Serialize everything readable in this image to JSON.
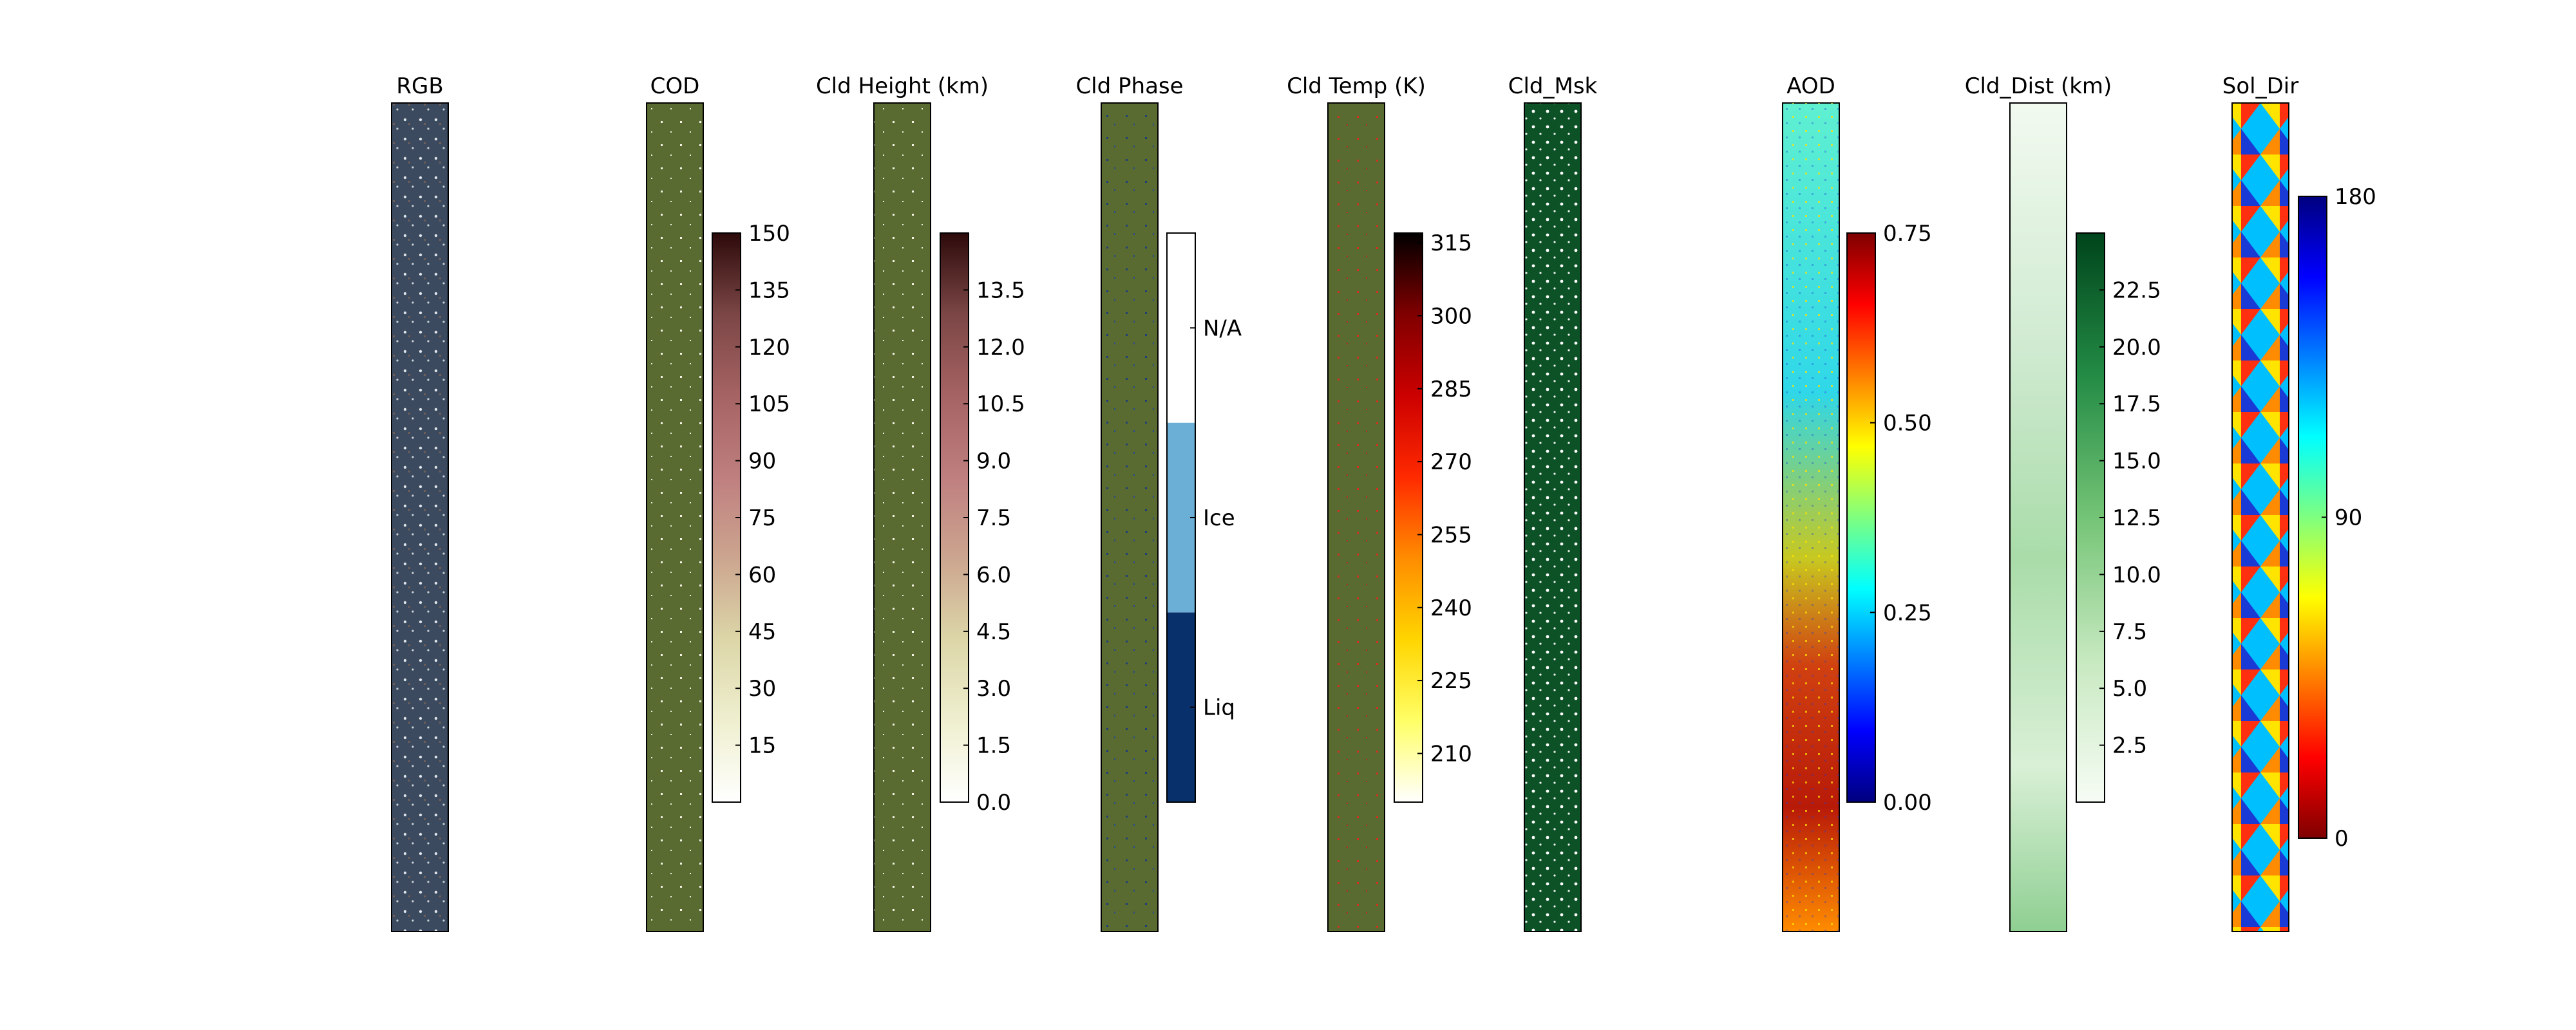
{
  "chart_data": [
    {
      "type": "heatmap",
      "title": "RGB",
      "colorbar": null
    },
    {
      "type": "heatmap",
      "title": "COD",
      "colorbar": {
        "range": [
          0,
          150
        ],
        "ticks": [
          15,
          30,
          45,
          60,
          75,
          90,
          105,
          120,
          135,
          150
        ],
        "tick_labels": [
          "15",
          "30",
          "45",
          "60",
          "75",
          "90",
          "105",
          "120",
          "135",
          "150"
        ],
        "colormap": "pink_r",
        "colors": [
          "#ffffff",
          "#efefcf",
          "#dcd6a8",
          "#cca58f",
          "#bf7f7f",
          "#a66363",
          "#7c4646",
          "#2d0a0a"
        ]
      }
    },
    {
      "type": "heatmap",
      "title": "Cld Height (km)",
      "colorbar": {
        "range": [
          0,
          15
        ],
        "ticks": [
          0,
          1.5,
          3,
          4.5,
          6,
          7.5,
          9,
          10.5,
          12,
          13.5
        ],
        "tick_labels": [
          "0.0",
          "1.5",
          "3.0",
          "4.5",
          "6.0",
          "7.5",
          "9.0",
          "10.5",
          "12.0",
          "13.5"
        ],
        "colormap": "pink_r",
        "colors": [
          "#ffffff",
          "#efefcf",
          "#dcd6a8",
          "#cca58f",
          "#bf7f7f",
          "#a66363",
          "#7c4646",
          "#2d0a0a"
        ]
      }
    },
    {
      "type": "heatmap",
      "title": "Cld Phase",
      "colorbar": {
        "categories": [
          "Liq",
          "Ice",
          "N/A"
        ],
        "category_colors": [
          "#08306b",
          "#6baed6",
          "#ffffff"
        ]
      }
    },
    {
      "type": "heatmap",
      "title": "Cld Temp (K)",
      "colorbar": {
        "range": [
          200,
          317
        ],
        "ticks": [
          210,
          225,
          240,
          255,
          270,
          285,
          300,
          315
        ],
        "tick_labels": [
          "210",
          "225",
          "240",
          "255",
          "270",
          "285",
          "300",
          "315"
        ],
        "colormap": "hot_r",
        "colors": [
          "#ffffff",
          "#ffff66",
          "#ffd500",
          "#ff8c00",
          "#ff2a00",
          "#cc0000",
          "#800000",
          "#000000"
        ]
      }
    },
    {
      "type": "heatmap",
      "title": "Cld_Msk",
      "colorbar": null
    },
    {
      "type": "heatmap",
      "title": "AOD",
      "colorbar": {
        "range": [
          0,
          0.75
        ],
        "ticks": [
          0,
          0.25,
          0.5,
          0.75
        ],
        "tick_labels": [
          "0.00",
          "0.25",
          "0.50",
          "0.75"
        ],
        "colormap": "jet",
        "colors": [
          "#00007f",
          "#0000ff",
          "#007fff",
          "#00ffff",
          "#7fff7f",
          "#ffff00",
          "#ff7f00",
          "#ff0000",
          "#7f0000"
        ]
      }
    },
    {
      "type": "heatmap",
      "title": "Cld_Dist (km)",
      "colorbar": {
        "range": [
          0,
          25
        ],
        "ticks": [
          2.5,
          5,
          7.5,
          10,
          12.5,
          15,
          17.5,
          20,
          22.5
        ],
        "tick_labels": [
          "2.5",
          "5.0",
          "7.5",
          "10.0",
          "12.5",
          "15.0",
          "17.5",
          "20.0",
          "22.5"
        ],
        "colormap": "Greens",
        "colors": [
          "#f7fcf5",
          "#c7e9c0",
          "#74c476",
          "#238b45",
          "#00441b"
        ]
      }
    },
    {
      "type": "heatmap",
      "title": "Sol_Dir",
      "colorbar": {
        "range": [
          0,
          180
        ],
        "ticks": [
          0,
          90,
          180
        ],
        "tick_labels": [
          "0",
          "90",
          "180"
        ],
        "colormap": "jet_r",
        "colors": [
          "#7f0000",
          "#ff0000",
          "#ff7f00",
          "#ffff00",
          "#7fff7f",
          "#00ffff",
          "#007fff",
          "#0000ff",
          "#00007f"
        ]
      }
    }
  ]
}
